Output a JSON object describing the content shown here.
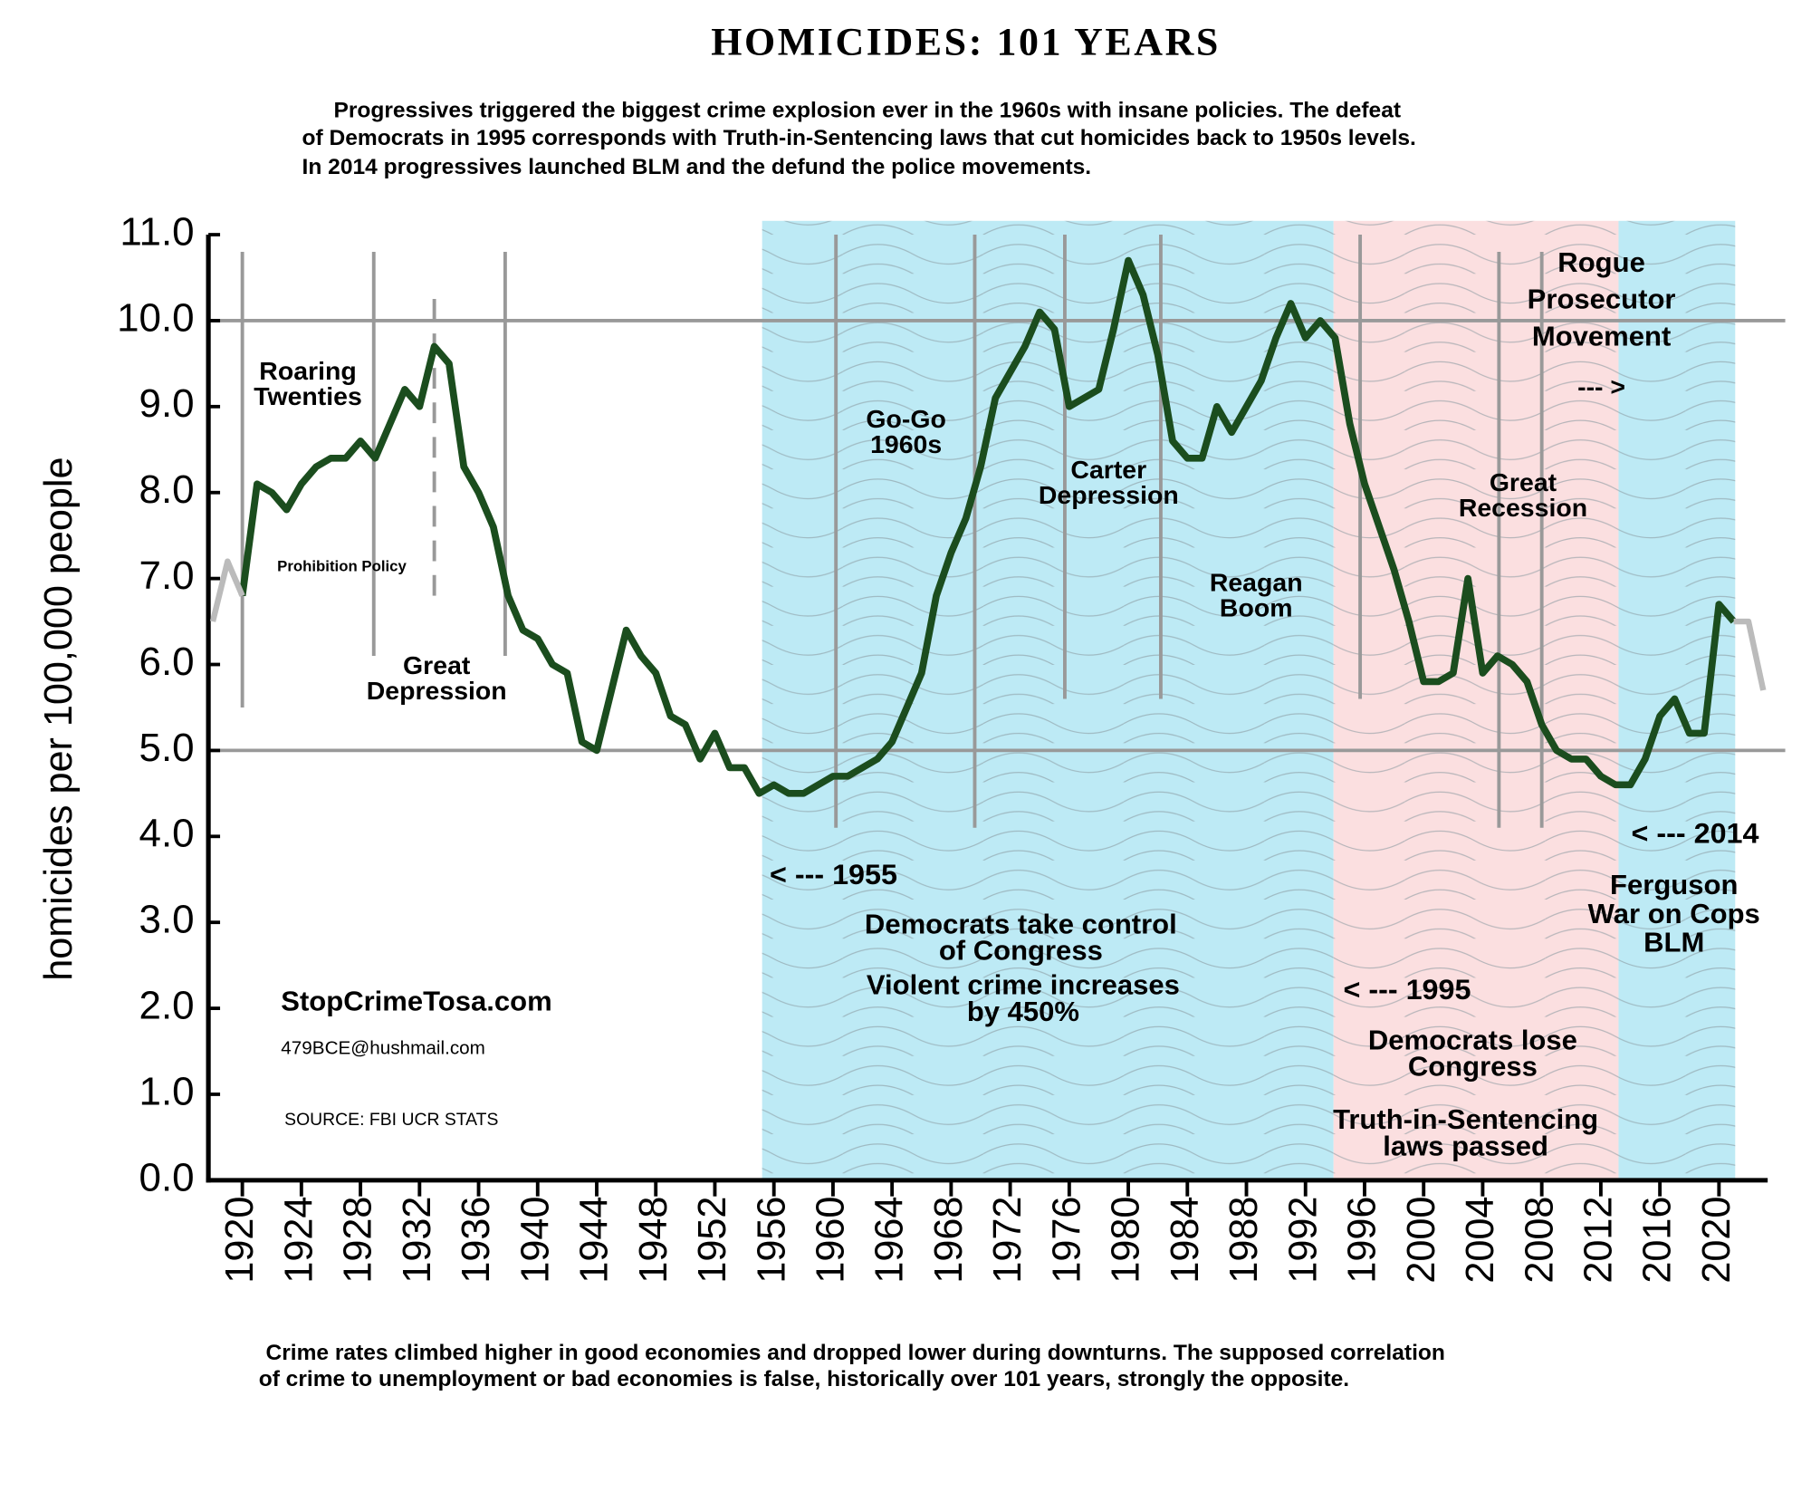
{
  "chart_data": {
    "type": "line",
    "title": "HOMICIDES: 101 YEARS",
    "subtitle": [
      "Progressives triggered the biggest crime explosion ever in the 1960s with insane policies. The defeat",
      "of Democrats in 1995 corresponds with Truth-in-Sentencing laws that cut homicides back to 1950s levels.",
      "In 2014 progressives launched BLM and the defund the police movements."
    ],
    "y_label": "homicides per 100,000 people",
    "footnote": [
      "Crime rates climbed higher in good economies and dropped lower during downturns.  The supposed correlation",
      "of crime to unemployment or bad economies is false, historically over 101 years, strongly the opposite."
    ],
    "xlim": [
      1917.7,
      2023.3
    ],
    "ylim": [
      0,
      11
    ],
    "xticks": [
      1920,
      1924,
      1928,
      1932,
      1936,
      1940,
      1944,
      1948,
      1952,
      1956,
      1960,
      1964,
      1968,
      1972,
      1976,
      1980,
      1984,
      1988,
      1992,
      1996,
      2000,
      2004,
      2008,
      2012,
      2016,
      2020
    ],
    "yticks": [
      {
        "value": 0,
        "label": "0.0"
      },
      {
        "value": 1,
        "label": "1.0"
      },
      {
        "value": 2,
        "label": "2.0"
      },
      {
        "value": 3,
        "label": "3.0"
      },
      {
        "value": 4,
        "label": "4.0"
      },
      {
        "value": 5,
        "label": "5.0"
      },
      {
        "value": 6,
        "label": "6.0"
      },
      {
        "value": 7,
        "label": "7.0"
      },
      {
        "value": 8,
        "label": "8.0"
      },
      {
        "value": 9,
        "label": "9.0"
      },
      {
        "value": 10,
        "label": "10.0"
      },
      {
        "value": 11,
        "label": "11.0"
      }
    ],
    "hlines": [
      10,
      5
    ],
    "regions": [
      {
        "start": 1955.2,
        "end": 1993.9,
        "color": "#bdeaf5"
      },
      {
        "start": 1993.9,
        "end": 2013.2,
        "color": "#fbdfe0"
      },
      {
        "start": 2013.2,
        "end": 2021.1,
        "color": "#bdeaf5"
      }
    ],
    "event_lines": [
      {
        "x": 1920,
        "ylim": [
          5.5,
          10.8
        ],
        "dashed": false
      },
      {
        "x": 1928.9,
        "ylim": [
          6.1,
          10.8
        ],
        "dashed": false
      },
      {
        "x": 1933,
        "ylim": [
          6.8,
          10.4
        ],
        "dashed": true
      },
      {
        "x": 1937.8,
        "ylim": [
          6.1,
          10.8
        ],
        "dashed": false
      },
      {
        "x": 1960.2,
        "ylim": [
          4.1,
          11
        ],
        "dashed": false
      },
      {
        "x": 1969.6,
        "ylim": [
          4.1,
          11
        ],
        "dashed": false
      },
      {
        "x": 1975.7,
        "ylim": [
          5.6,
          11
        ],
        "dashed": false
      },
      {
        "x": 1982.2,
        "ylim": [
          5.6,
          11
        ],
        "dashed": false
      },
      {
        "x": 1995.7,
        "ylim": [
          5.6,
          11
        ],
        "dashed": false
      },
      {
        "x": 2005.1,
        "ylim": [
          4.1,
          10.8
        ],
        "dashed": false
      },
      {
        "x": 2008,
        "ylim": [
          4.1,
          10.8
        ],
        "dashed": false
      }
    ],
    "series": [
      {
        "color": "#1b4d1e",
        "x": [
          1920,
          1921,
          1922,
          1923,
          1924,
          1925,
          1926,
          1927,
          1928,
          1929,
          1930,
          1931,
          1932,
          1933,
          1934,
          1935,
          1936,
          1937,
          1938,
          1939,
          1940,
          1941,
          1942,
          1943,
          1944,
          1945,
          1946,
          1947,
          1948,
          1949,
          1950,
          1951,
          1952,
          1953,
          1954,
          1955,
          1956,
          1957,
          1958,
          1959,
          1960,
          1961,
          1962,
          1963,
          1964,
          1965,
          1966,
          1967,
          1968,
          1969,
          1970,
          1971,
          1972,
          1973,
          1974,
          1975,
          1976,
          1977,
          1978,
          1979,
          1980,
          1981,
          1982,
          1983,
          1984,
          1985,
          1986,
          1987,
          1988,
          1989,
          1990,
          1991,
          1992,
          1993,
          1994,
          1995,
          1996,
          1997,
          1998,
          1999,
          2000,
          2001,
          2002,
          2003,
          2004,
          2005,
          2006,
          2007,
          2008,
          2009,
          2010,
          2011,
          2012,
          2013,
          2014,
          2015,
          2016,
          2017,
          2018,
          2019,
          2020,
          2021
        ],
        "values": [
          6.8,
          8.1,
          8.0,
          7.8,
          8.1,
          8.3,
          8.4,
          8.4,
          8.6,
          8.4,
          8.8,
          9.2,
          9.0,
          9.7,
          9.5,
          8.3,
          8.0,
          7.6,
          6.8,
          6.4,
          6.3,
          6.0,
          5.9,
          5.1,
          5.0,
          5.7,
          6.4,
          6.1,
          5.9,
          5.4,
          5.3,
          4.9,
          5.2,
          4.8,
          4.8,
          4.5,
          4.6,
          4.5,
          4.5,
          4.6,
          4.7,
          4.7,
          4.8,
          4.9,
          5.1,
          5.5,
          5.9,
          6.8,
          7.3,
          7.7,
          8.3,
          9.1,
          9.4,
          9.7,
          10.1,
          9.9,
          9.0,
          9.1,
          9.2,
          9.9,
          10.7,
          10.3,
          9.6,
          8.6,
          8.4,
          8.4,
          9.0,
          8.7,
          9.0,
          9.3,
          9.8,
          10.2,
          9.8,
          10.0,
          9.8,
          8.8,
          8.1,
          7.6,
          7.1,
          6.5,
          5.8,
          5.8,
          5.9,
          7.0,
          5.9,
          6.1,
          6.0,
          5.8,
          5.3,
          5.0,
          4.9,
          4.9,
          4.7,
          4.6,
          4.6,
          4.9,
          5.4,
          5.6,
          5.2,
          5.2,
          6.7,
          6.5
        ]
      },
      {
        "color": "#bbbbbb",
        "x": [
          1918,
          1919,
          1920
        ],
        "values": [
          6.5,
          7.2,
          6.8
        ]
      },
      {
        "color": "#bbbbbb",
        "x": [
          2021,
          2022,
          2023
        ],
        "values": [
          6.5,
          6.5,
          5.7
        ]
      }
    ],
    "annotations": [
      {
        "lines": [
          "Roaring",
          "Twenties"
        ]
      },
      {
        "lines": [
          "Prohibition Policy"
        ]
      },
      {
        "lines": [
          "Great",
          "Depression"
        ]
      },
      {
        "lines": [
          "Go-Go",
          "1960s"
        ]
      },
      {
        "lines": [
          "Carter",
          "Depression"
        ]
      },
      {
        "lines": [
          "Reagan",
          "Boom"
        ]
      },
      {
        "lines": [
          "Rogue",
          "Prosecutor",
          "Movement"
        ]
      },
      {
        "lines": [
          "--- >"
        ]
      },
      {
        "lines": [
          "Great",
          "Recession"
        ]
      },
      {
        "lines": [
          "< --- 1955"
        ]
      },
      {
        "lines": [
          "Democrats take control",
          "of Congress"
        ]
      },
      {
        "lines": [
          "Violent crime increases",
          "by 450%"
        ]
      },
      {
        "lines": [
          "< --- 1995"
        ]
      },
      {
        "lines": [
          "Democrats lose",
          "Congress"
        ]
      },
      {
        "lines": [
          "Truth-in-Sentencing",
          "laws passed"
        ]
      },
      {
        "lines": [
          "< --- 2014"
        ]
      },
      {
        "lines": [
          "Ferguson",
          "War on Cops",
          "BLM"
        ]
      },
      {
        "lines": [
          "StopCrimeTosa.com"
        ]
      },
      {
        "lines": [
          "479BCE@hushmail.com"
        ]
      },
      {
        "lines": [
          "SOURCE: FBI UCR STATS"
        ]
      }
    ]
  }
}
